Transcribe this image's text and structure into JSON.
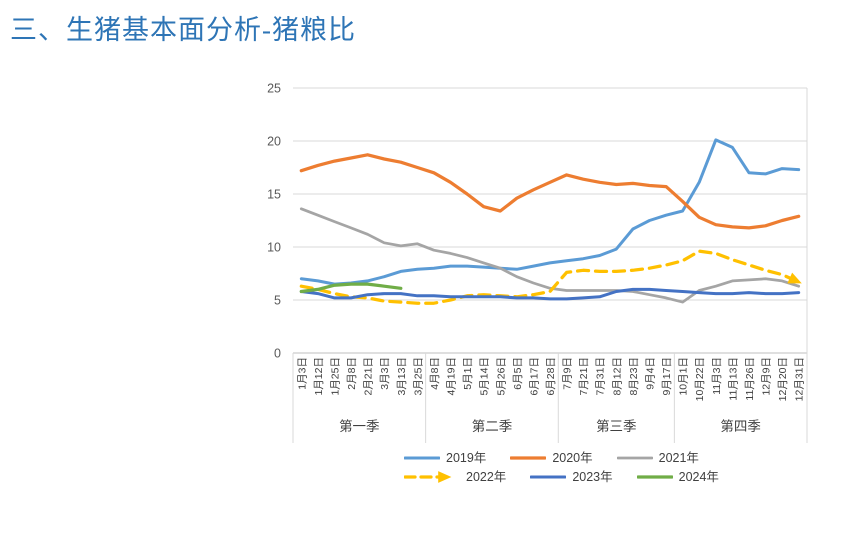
{
  "page_title": "三、生猪基本面分析-猪粮比",
  "colors": {
    "title_accent": "#2E75B6",
    "gridline": "#D9D9D9",
    "axis_line": "#BFBFBF",
    "tick_text": "#595959",
    "label_text": "#404040"
  },
  "chart_data": {
    "type": "line",
    "title": "",
    "xlabel": "",
    "ylabel": "",
    "ylim": [
      0,
      25
    ],
    "y_ticks": [
      0,
      5,
      10,
      15,
      20,
      25
    ],
    "grid": "horizontal",
    "legend_position": "bottom",
    "categories": [
      "1月3日",
      "1月12日",
      "1月25日",
      "2月8日",
      "2月21日",
      "3月3日",
      "3月13日",
      "3月25日",
      "4月8日",
      "4月19日",
      "5月1日",
      "5月14日",
      "5月26日",
      "6月5日",
      "6月17日",
      "6月28日",
      "7月9日",
      "7月21日",
      "7月31日",
      "8月12日",
      "8月23日",
      "9月4日",
      "9月17日",
      "10月1日",
      "10月22日",
      "11月3日",
      "11月13日",
      "11月26日",
      "12月9日",
      "12月20日",
      "12月31日"
    ],
    "quarter_groups": [
      {
        "label": "第一季",
        "span": 8
      },
      {
        "label": "第二季",
        "span": 8
      },
      {
        "label": "第三季",
        "span": 7
      },
      {
        "label": "第四季",
        "span": 8
      }
    ],
    "series": [
      {
        "name": "2019年",
        "color": "#5B9BD5",
        "style": "solid",
        "width": 3,
        "values": [
          7.0,
          6.8,
          6.5,
          6.6,
          6.8,
          7.2,
          7.7,
          7.9,
          8.0,
          8.2,
          8.2,
          8.1,
          8.0,
          7.9,
          8.2,
          8.5,
          8.7,
          8.9,
          9.2,
          9.8,
          11.7,
          12.5,
          13.0,
          13.4,
          16.1,
          20.1,
          19.4,
          17.0,
          16.9,
          17.4,
          17.3
        ]
      },
      {
        "name": "2020年",
        "color": "#ED7D31",
        "style": "solid",
        "width": 3.25,
        "values": [
          17.2,
          17.7,
          18.1,
          18.4,
          18.7,
          18.3,
          18.0,
          17.5,
          17.0,
          16.1,
          15.0,
          13.8,
          13.4,
          14.6,
          15.4,
          16.1,
          16.8,
          16.4,
          16.1,
          15.9,
          16.0,
          15.8,
          15.7,
          14.3,
          12.8,
          12.1,
          11.9,
          11.8,
          12.0,
          12.5,
          12.9
        ]
      },
      {
        "name": "2021年",
        "color": "#A5A5A5",
        "style": "solid",
        "width": 2.75,
        "values": [
          13.6,
          13.0,
          12.4,
          11.8,
          11.2,
          10.4,
          10.1,
          10.3,
          9.7,
          9.4,
          9.0,
          8.5,
          8.0,
          7.2,
          6.6,
          6.1,
          5.9,
          5.9,
          5.9,
          5.9,
          5.8,
          5.5,
          5.2,
          4.8,
          5.9,
          6.3,
          6.8,
          6.9,
          7.0,
          6.8,
          6.3
        ]
      },
      {
        "name": "2022年",
        "color": "#FFC000",
        "style": "dashed-arrow",
        "width": 3.25,
        "values": [
          6.3,
          6.0,
          5.6,
          5.3,
          5.2,
          4.9,
          4.8,
          4.7,
          4.7,
          5.0,
          5.4,
          5.5,
          5.4,
          5.3,
          5.5,
          5.8,
          7.6,
          7.8,
          7.7,
          7.7,
          7.8,
          8.0,
          8.3,
          8.7,
          9.6,
          9.4,
          8.8,
          8.3,
          7.8,
          7.4,
          6.7
        ]
      },
      {
        "name": "2023年",
        "color": "#4472C4",
        "style": "solid",
        "width": 3,
        "values": [
          5.8,
          5.6,
          5.2,
          5.2,
          5.5,
          5.6,
          5.6,
          5.4,
          5.4,
          5.3,
          5.3,
          5.3,
          5.3,
          5.2,
          5.2,
          5.1,
          5.1,
          5.2,
          5.3,
          5.8,
          6.0,
          6.0,
          5.9,
          5.8,
          5.7,
          5.6,
          5.6,
          5.7,
          5.6,
          5.6,
          5.7
        ]
      },
      {
        "name": "2024年",
        "color": "#70AD47",
        "style": "solid",
        "width": 3.25,
        "values": [
          5.8,
          6.0,
          6.4,
          6.5,
          6.5,
          6.3,
          6.1
        ]
      }
    ],
    "legend_rows": [
      [
        "2019年",
        "2020年",
        "2021年"
      ],
      [
        "2022年",
        "2023年",
        "2024年"
      ]
    ]
  }
}
